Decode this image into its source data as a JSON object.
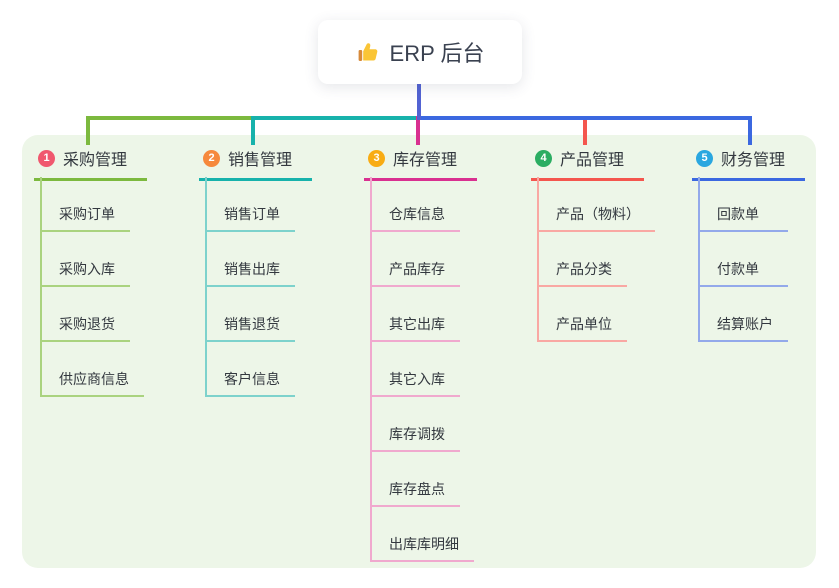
{
  "root": {
    "label": "ERP 后台",
    "icon": "thumbs-up-icon",
    "icon_colors": {
      "hand": "#FAC536",
      "sleeve": "#D78A3A"
    },
    "connector_color": "#5263D3"
  },
  "canvas": {
    "background": "#EDF6E8"
  },
  "branches": [
    {
      "index": "1",
      "label": "采购管理",
      "badge_color": "#F0586E",
      "line_color": "#7CB93E",
      "light_line_color": "#AAD37F",
      "children": [
        "采购订单",
        "采购入库",
        "采购退货",
        "供应商信息"
      ]
    },
    {
      "index": "2",
      "label": "销售管理",
      "badge_color": "#F6893C",
      "line_color": "#17B2AB",
      "light_line_color": "#7DD2CC",
      "children": [
        "销售订单",
        "销售出库",
        "销售退货",
        "客户信息"
      ]
    },
    {
      "index": "3",
      "label": "库存管理",
      "badge_color": "#F8AC14",
      "line_color": "#D93090",
      "light_line_color": "#F0A9CE",
      "children": [
        "仓库信息",
        "产品库存",
        "其它出库",
        "其它入库",
        "库存调拨",
        "库存盘点",
        "出库库明细"
      ]
    },
    {
      "index": "4",
      "label": "产品管理",
      "badge_color": "#2BAD62",
      "line_color": "#F4564E",
      "light_line_color": "#F9A8A3",
      "children": [
        "产品（物料）",
        "产品分类",
        "产品单位"
      ]
    },
    {
      "index": "5",
      "label": "财务管理",
      "badge_color": "#2AA7E0",
      "line_color": "#3B68E0",
      "light_line_color": "#93A9EA",
      "children": [
        "回款单",
        "付款单",
        "结算账户"
      ]
    }
  ]
}
